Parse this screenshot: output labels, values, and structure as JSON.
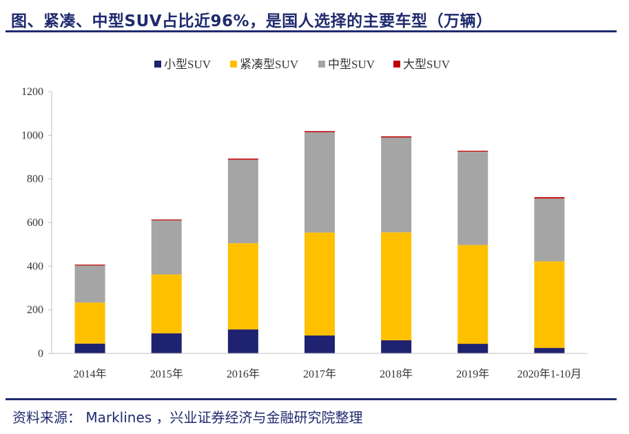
{
  "title": "图、紧凑、中型SUV占比近96%，是国人选择的主要车型（万辆）",
  "source": "资料来源： Marklines ，兴业证券经济与金融研究院整理",
  "chart_data": {
    "type": "bar",
    "stacked": true,
    "categories": [
      "2014年",
      "2015年",
      "2016年",
      "2017年",
      "2018年",
      "2019年",
      "2020年1-10月"
    ],
    "series": [
      {
        "name": "小型SUV",
        "color": "#1f2270",
        "values": [
          45,
          92,
          110,
          82,
          60,
          44,
          25
        ]
      },
      {
        "name": "紧凑型SUV",
        "color": "#ffc000",
        "values": [
          188,
          270,
          395,
          472,
          495,
          453,
          397
        ]
      },
      {
        "name": "中型SUV",
        "color": "#a5a5a5",
        "values": [
          170,
          248,
          383,
          460,
          435,
          428,
          288
        ]
      },
      {
        "name": "大型SUV",
        "color": "#c00000",
        "values": [
          4,
          4,
          5,
          5,
          5,
          4,
          6
        ]
      }
    ],
    "ylim": [
      0,
      1200
    ],
    "yticks": [
      0,
      200,
      400,
      600,
      800,
      1000,
      1200
    ],
    "legend_position": "top",
    "grid": false
  }
}
